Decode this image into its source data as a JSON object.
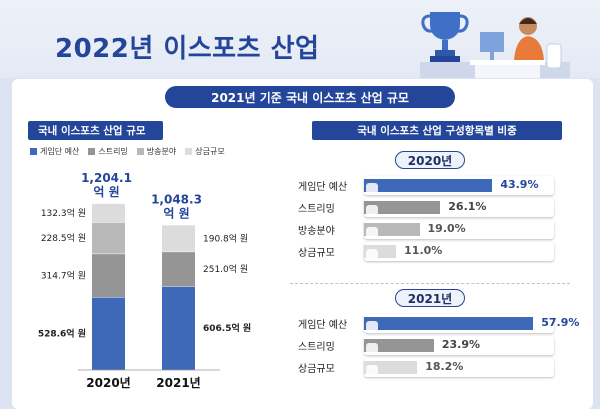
{
  "header": {
    "title": "2022년 이스포츠 산업"
  },
  "subtitle": "2021년 기준 국내 이스포츠 산업 규모",
  "colors": {
    "navy": "#23459a",
    "blue": "#3e68b8",
    "dark_gray": "#959595",
    "mid_gray": "#b9b9b9",
    "light_gray": "#dcdcdc"
  },
  "left_section": {
    "title": "국내 이스포츠 산업 규모"
  },
  "right_section": {
    "title": "국내 이스포츠 산업 구성항목별 비중"
  },
  "chart_data": [
    {
      "type": "bar",
      "stacked": true,
      "title": "국내 이스포츠 산업 규모",
      "categories": [
        "2020년",
        "2021년"
      ],
      "totals": [
        "1,204.1\n억 원",
        "1,048.3\n억 원"
      ],
      "total_values": [
        1204.1,
        1048.3
      ],
      "series": [
        {
          "name": "게임단 예산",
          "values": [
            528.6,
            606.5
          ],
          "labels": [
            "528.6억 원",
            "606.5억 원"
          ],
          "color": "#3e68b8"
        },
        {
          "name": "스트리밍",
          "values": [
            314.7,
            251.0
          ],
          "labels": [
            "314.7억 원",
            "251.0억 원"
          ],
          "color": "#959595"
        },
        {
          "name": "방송분야",
          "values": [
            228.5,
            null
          ],
          "labels": [
            "228.5억 원",
            ""
          ],
          "color": "#b9b9b9"
        },
        {
          "name": "상금규모",
          "values": [
            132.3,
            190.8
          ],
          "labels": [
            "132.3억 원",
            "190.8억 원"
          ],
          "color": "#dcdcdc"
        }
      ],
      "legend": [
        "게임단 예산",
        "스트리밍",
        "방송분야",
        "상금규모"
      ]
    },
    {
      "type": "bar",
      "orientation": "horizontal",
      "title": "국내 이스포츠 산업 구성항목별 비중",
      "year": "2020년",
      "categories": [
        "게임단 예산",
        "스트리밍",
        "방송분야",
        "상금규모"
      ],
      "values": [
        43.9,
        26.1,
        19.0,
        11.0
      ],
      "labels": [
        "43.9%",
        "26.1%",
        "19.0%",
        "11.0%"
      ],
      "xlim": [
        0,
        65
      ]
    },
    {
      "type": "bar",
      "orientation": "horizontal",
      "year": "2021년",
      "categories": [
        "게임단 예산",
        "스트리밍",
        "상금규모"
      ],
      "values": [
        57.9,
        23.9,
        18.2
      ],
      "labels": [
        "57.9%",
        "23.9%",
        "18.2%"
      ],
      "xlim": [
        0,
        65
      ]
    }
  ]
}
